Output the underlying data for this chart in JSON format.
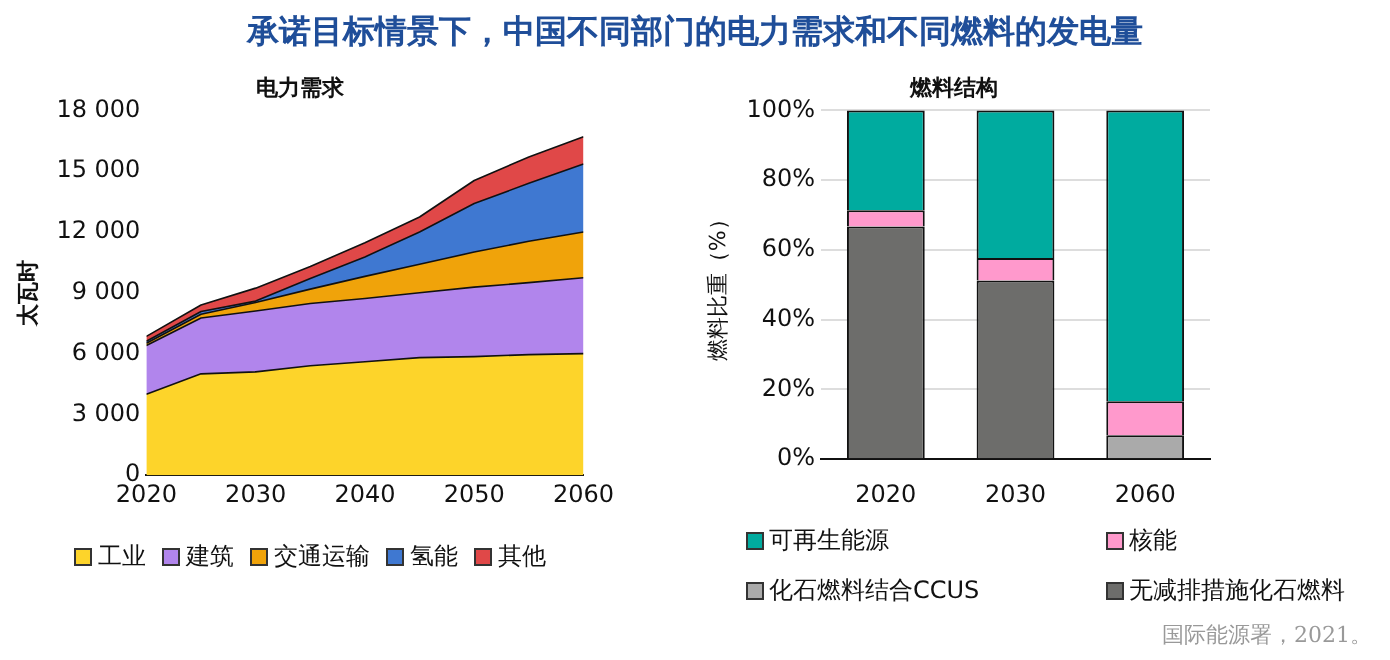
{
  "chart_data": [
    {
      "type": "area",
      "title": "承诺目标情景下，中国不同部门的电力需求和不同燃料的发电量",
      "subtitle": "电力需求",
      "ylabel": "太瓦时",
      "stacked": true,
      "legend": "bottom",
      "x": [
        2020,
        2025,
        2030,
        2035,
        2040,
        2045,
        2050,
        2055,
        2060
      ],
      "xlim": [
        2020,
        2060
      ],
      "xticks": [
        2020,
        2030,
        2040,
        2050,
        2060
      ],
      "ylim": [
        0,
        18000
      ],
      "yticks": [
        0,
        {
          "value": 3000,
          "label": "3 000"
        },
        {
          "value": 6000,
          "label": "6 000"
        },
        {
          "value": 9000,
          "label": "9 000"
        },
        {
          "value": 12000,
          "label": "12 000"
        },
        {
          "value": 15000,
          "label": "15 000"
        },
        {
          "value": 18000,
          "label": "18 000"
        }
      ],
      "grid": false,
      "series": [
        {
          "name": "工业",
          "color": "#fdd42a",
          "values": [
            4000,
            5000,
            5100,
            5400,
            5600,
            5800,
            5850,
            5950,
            6000
          ]
        },
        {
          "name": "建筑",
          "color": "#b185ec",
          "values": [
            2400,
            2760,
            3000,
            3070,
            3120,
            3200,
            3430,
            3550,
            3740
          ]
        },
        {
          "name": "交通运输",
          "color": "#f0a30a",
          "values": [
            110,
            180,
            420,
            710,
            1090,
            1410,
            1730,
            2040,
            2260
          ]
        },
        {
          "name": "氢能",
          "color": "#3f78d1",
          "values": [
            100,
            140,
            70,
            520,
            960,
            1590,
            2400,
            2860,
            3350
          ]
        },
        {
          "name": "其他",
          "color": "#e04848",
          "values": [
            240,
            320,
            640,
            600,
            700,
            740,
            1130,
            1300,
            1350
          ]
        }
      ]
    },
    {
      "type": "bar",
      "title": "燃料结构",
      "ylabel": "燃料比重（%）",
      "stacked": true,
      "legend": "bottom",
      "categories": [
        "2020",
        "2030",
        "2060"
      ],
      "ylim": [
        0,
        100
      ],
      "yticks": [
        {
          "value": 0,
          "label": "0%"
        },
        {
          "value": 20,
          "label": "20%"
        },
        {
          "value": 40,
          "label": "40%"
        },
        {
          "value": 60,
          "label": "60%"
        },
        {
          "value": 80,
          "label": "80%"
        },
        {
          "value": 100,
          "label": "100%"
        }
      ],
      "grid": "y",
      "annotations": [
        "国际能源署，2021。"
      ],
      "series": [
        {
          "name": "无减排措施化石燃料",
          "color": "#6d6d6b",
          "values": [
            66.7,
            51.2,
            0
          ]
        },
        {
          "name": "化石燃料结合CCUS",
          "color": "#aaaaaa",
          "values": [
            0,
            0,
            6.9
          ]
        },
        {
          "name": "核能",
          "color": "#ff99cc",
          "values": [
            4.7,
            6.5,
            9.7
          ]
        },
        {
          "name": "可再生能源",
          "color": "#00ab9f",
          "values": [
            28.6,
            42.3,
            83.4
          ]
        }
      ]
    }
  ]
}
